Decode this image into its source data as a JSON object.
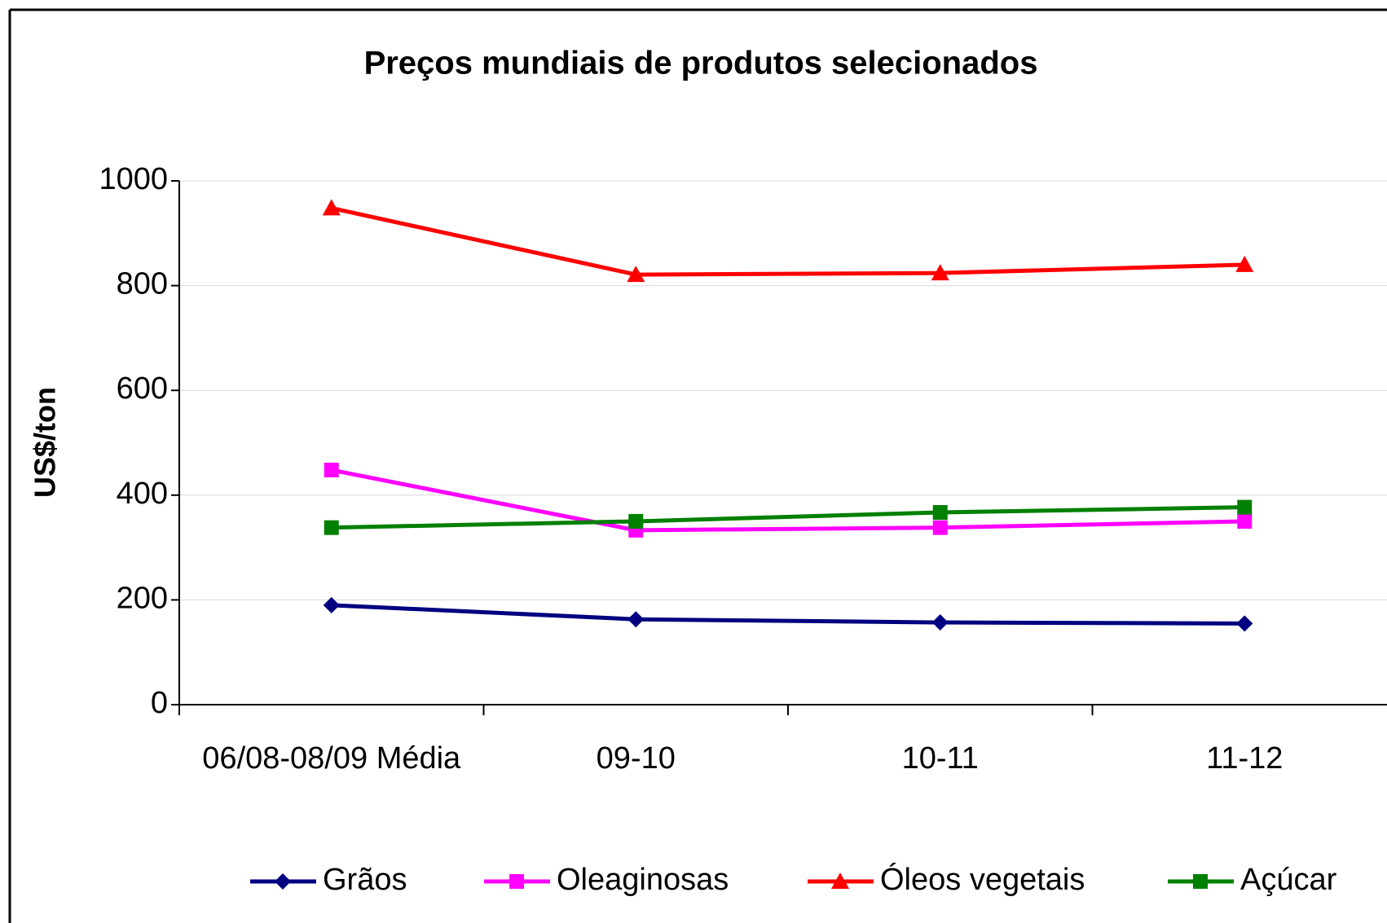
{
  "chart_data": {
    "type": "line",
    "title": "Preços mundiais de produtos selecionados",
    "y_label": "US$/ton",
    "categories": [
      "06/08-08/09 Média",
      "09-10",
      "10-11",
      "11-12"
    ],
    "series": [
      {
        "name": "Grãos",
        "color": "#000080",
        "marker": "diamond",
        "values": [
          190,
          163,
          157,
          155
        ]
      },
      {
        "name": "Oleaginosas",
        "color": "#ff00ff",
        "marker": "square",
        "values": [
          448,
          333,
          338,
          350
        ]
      },
      {
        "name": "Óleos vegetais",
        "color": "#ff0000",
        "marker": "triangle",
        "values": [
          948,
          821,
          824,
          840
        ]
      },
      {
        "name": "Açúcar",
        "color": "#008000",
        "marker": "square",
        "values": [
          338,
          350,
          367,
          377
        ]
      }
    ],
    "ylim": [
      0,
      1000
    ],
    "yticks": [
      0,
      200,
      400,
      600,
      800,
      1000
    ],
    "grid": true,
    "legend": "bottom"
  }
}
